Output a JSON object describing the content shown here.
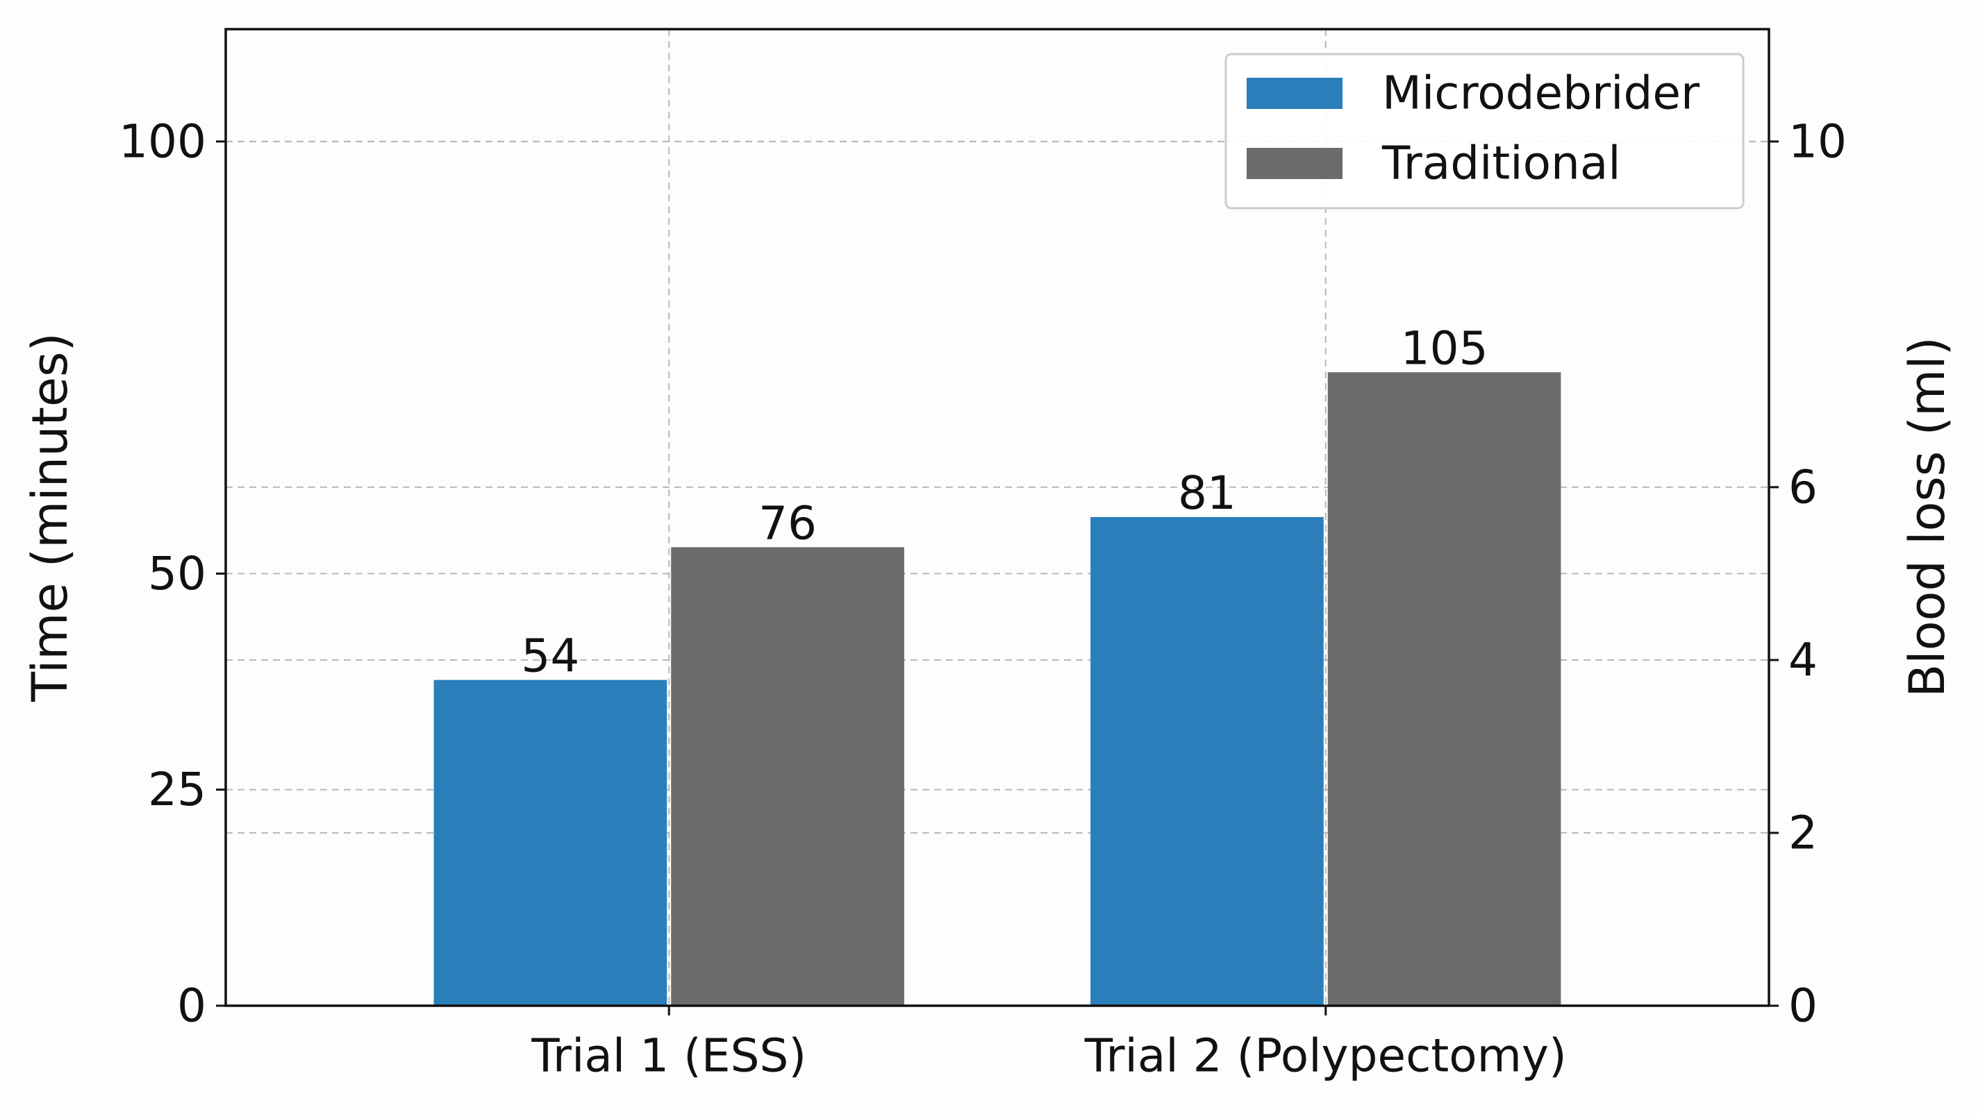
{
  "chart_data": {
    "type": "bar",
    "categories": [
      "Trial 1 (ESS)",
      "Trial 2 (Polypectomy)"
    ],
    "series": [
      {
        "name": "Microdebrider",
        "values": [
          54,
          81
        ],
        "color": "#2a7fba"
      },
      {
        "name": "Traditional",
        "values": [
          76,
          105
        ],
        "color": "#6b6b6b"
      }
    ],
    "ylabel": "Time (minutes)",
    "y2label": "Blood loss (ml)",
    "ylim": [
      0,
      113
    ],
    "y2lim": [
      0,
      11.3
    ],
    "yticks": [
      0,
      25,
      50,
      100
    ],
    "y2ticks": [
      0,
      2,
      4,
      6,
      10
    ],
    "grid": true,
    "legend_position": "top-right"
  }
}
